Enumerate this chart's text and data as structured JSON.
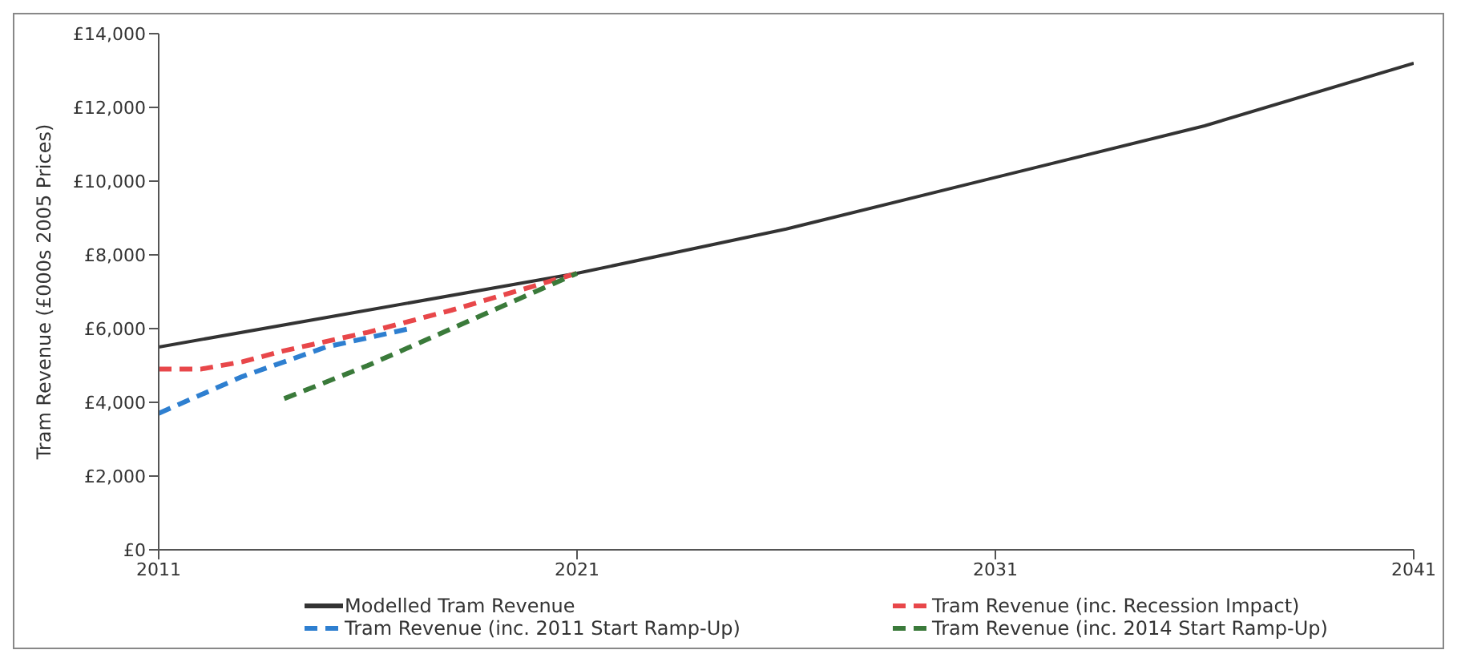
{
  "chart_data": {
    "type": "line",
    "ylabel": "Tram Revenue (£000s 2005 Prices)",
    "xlim": [
      2011,
      2041
    ],
    "xticks": [
      2011,
      2021,
      2031,
      2041
    ],
    "ylim": [
      0,
      14000
    ],
    "yticks": [
      {
        "value": 0,
        "label": "£0"
      },
      {
        "value": 2000,
        "label": "£2,000"
      },
      {
        "value": 4000,
        "label": "£4,000"
      },
      {
        "value": 6000,
        "label": "£6,000"
      },
      {
        "value": 8000,
        "label": "£8,000"
      },
      {
        "value": 10000,
        "label": "£10,000"
      },
      {
        "value": 12000,
        "label": "£12,000"
      },
      {
        "value": 14000,
        "label": "£14,000"
      }
    ],
    "grid": false,
    "legend": "bottom",
    "marker": "none",
    "series": [
      {
        "name": "Modelled Tram Revenue",
        "color": "#333333",
        "line_style": "solid",
        "x": [
          2011,
          2016,
          2021,
          2026,
          2031,
          2036,
          2041
        ],
        "values": [
          5500,
          6500,
          7500,
          8700,
          10100,
          11500,
          13200
        ]
      },
      {
        "name": "Tram Revenue (inc. Recession Impact)",
        "color": "#e8474a",
        "line_style": "dashed",
        "x": [
          2011,
          2012,
          2013,
          2014,
          2016,
          2018,
          2021
        ],
        "values": [
          4900,
          4900,
          5100,
          5400,
          5900,
          6500,
          7500
        ]
      },
      {
        "name": "Tram Revenue (inc. 2011 Start Ramp-Up)",
        "color": "#2e7fd0",
        "line_style": "dashed",
        "x": [
          2011,
          2013,
          2015,
          2017
        ],
        "values": [
          3700,
          4700,
          5500,
          6000
        ]
      },
      {
        "name": "Tram Revenue (inc. 2014 Start Ramp-Up)",
        "color": "#3a7a3a",
        "line_style": "dashed",
        "x": [
          2014,
          2016,
          2018,
          2020,
          2021
        ],
        "values": [
          4100,
          5000,
          6000,
          7000,
          7500
        ]
      }
    ]
  }
}
